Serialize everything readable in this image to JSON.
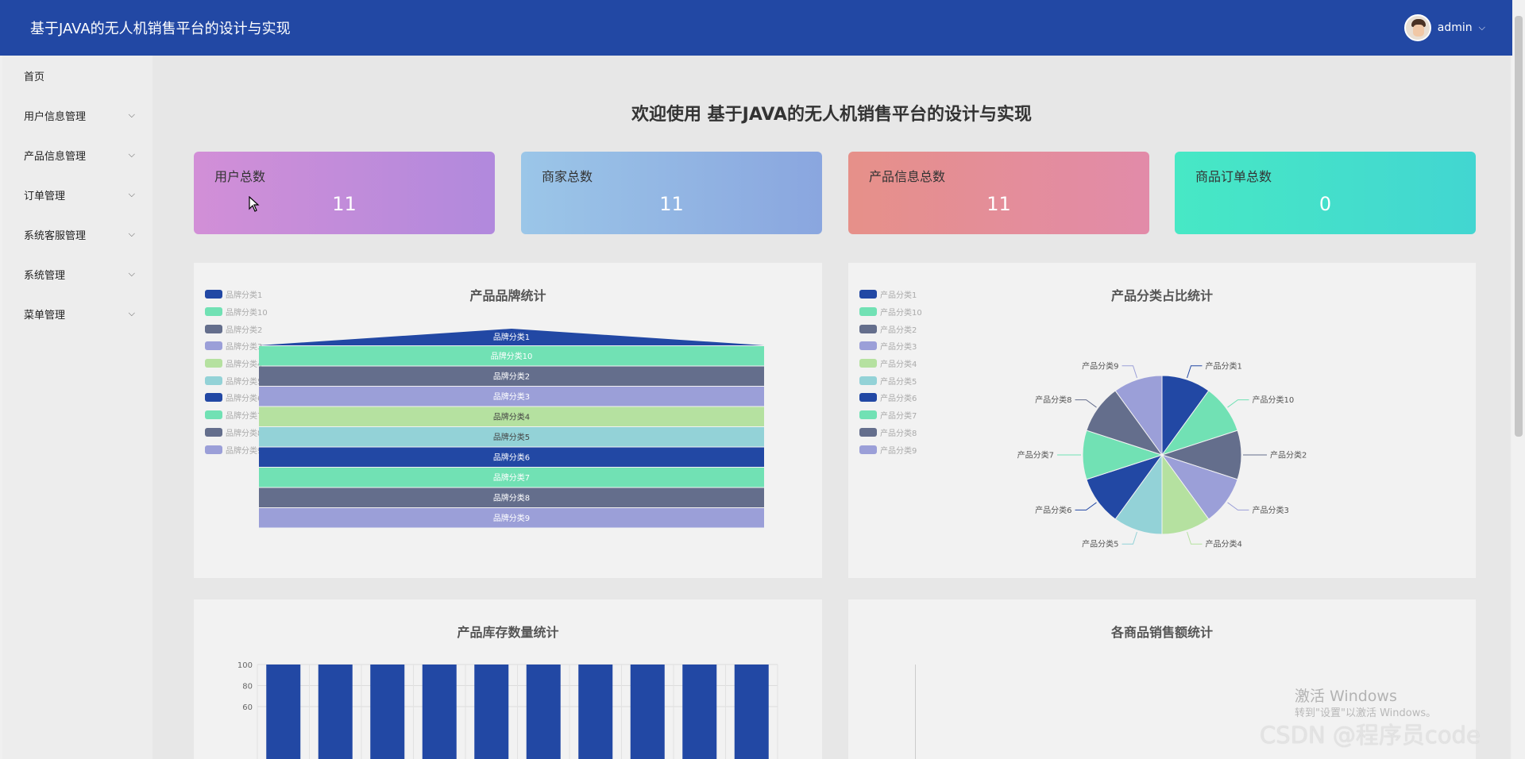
{
  "app": {
    "title": "基于JAVA的无人机销售平台的设计与实现"
  },
  "user": {
    "name": "admin"
  },
  "sidebar": {
    "items": [
      {
        "label": "首页",
        "expandable": false
      },
      {
        "label": "用户信息管理",
        "expandable": true
      },
      {
        "label": "产品信息管理",
        "expandable": true
      },
      {
        "label": "订单管理",
        "expandable": true
      },
      {
        "label": "系统客服管理",
        "expandable": true
      },
      {
        "label": "系统管理",
        "expandable": true
      },
      {
        "label": "菜单管理",
        "expandable": true
      }
    ]
  },
  "welcome": "欢迎使用 基于JAVA的无人机销售平台的设计与实现",
  "stats": [
    {
      "label": "用户总数",
      "value": "11"
    },
    {
      "label": "商家总数",
      "value": "11"
    },
    {
      "label": "产品信息总数",
      "value": "11"
    },
    {
      "label": "商品订单总数",
      "value": "0"
    }
  ],
  "colors": {
    "palette": [
      "#2248a4",
      "#71e1b4",
      "#646e8c",
      "#9b9fd8",
      "#b5e1a0",
      "#93d2d7",
      "#2248a4",
      "#71e1b4",
      "#646e8c",
      "#9b9fd8"
    ]
  },
  "chart_data": [
    {
      "type": "funnel",
      "title": "产品品牌统计",
      "legend_position": "top-left",
      "categories": [
        "品牌分类1",
        "品牌分类10",
        "品牌分类2",
        "品牌分类3",
        "品牌分类4",
        "品牌分类5",
        "品牌分类6",
        "品牌分类7",
        "品牌分类8",
        "品牌分类9"
      ]
    },
    {
      "type": "pie",
      "title": "产品分类占比统计",
      "legend_position": "top-left",
      "legend": [
        "产品分类1",
        "产品分类10",
        "产品分类2",
        "产品分类3",
        "产品分类4",
        "产品分类5",
        "产品分类6",
        "产品分类7",
        "产品分类8",
        "产品分类9"
      ],
      "categories": [
        "产品分类1",
        "产品分类10",
        "产品分类2",
        "产品分类3",
        "产品分类4",
        "产品分类5",
        "产品分类6",
        "产品分类7",
        "产品分类8",
        "产品分类9"
      ],
      "values": [
        1,
        1,
        1,
        1,
        1,
        1,
        1,
        1,
        1,
        1
      ]
    },
    {
      "type": "bar",
      "title": "产品库存数量统计",
      "values": [
        100,
        100,
        100,
        100,
        100,
        100,
        100,
        100,
        100,
        100
      ],
      "yticks": [
        "100",
        "80",
        "60"
      ],
      "ylim": [
        0,
        100
      ],
      "grid": true
    },
    {
      "type": "bar",
      "title": "各商品销售额统计",
      "values": []
    }
  ],
  "watermarks": {
    "activate_title": "激活 Windows",
    "activate_sub": "转到\"设置\"以激活 Windows。",
    "csdn": "CSDN @程序员code"
  }
}
